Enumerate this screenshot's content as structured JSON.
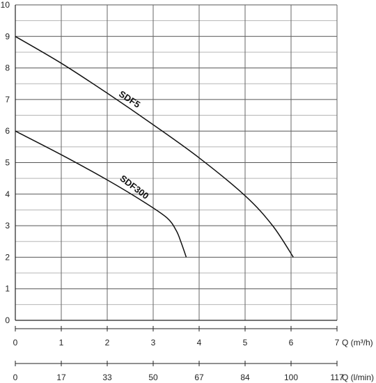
{
  "chart_data": {
    "type": "line",
    "title": "",
    "xlabel": "Q (m³/h)",
    "x2label": "Q (l/min)",
    "ylabel": "",
    "xlim": [
      0,
      7
    ],
    "ylim": [
      0,
      10
    ],
    "x_ticks": [
      "0",
      "1",
      "2",
      "3",
      "4",
      "5",
      "6",
      "7"
    ],
    "x2_ticks": [
      "0",
      "17",
      "33",
      "50",
      "67",
      "84",
      "100",
      "117"
    ],
    "y_ticks": [
      "0",
      "1",
      "2",
      "3",
      "4",
      "5",
      "6",
      "7",
      "8",
      "9",
      "10"
    ],
    "grid": true,
    "series": [
      {
        "name": "SDF5",
        "points": [
          [
            0,
            9.0
          ],
          [
            1,
            8.15
          ],
          [
            2,
            7.2
          ],
          [
            3,
            6.2
          ],
          [
            4,
            5.15
          ],
          [
            5,
            3.95
          ],
          [
            5.6,
            3.0
          ],
          [
            6.05,
            2.0
          ]
        ]
      },
      {
        "name": "SDF300",
        "points": [
          [
            0,
            6.0
          ],
          [
            1,
            5.25
          ],
          [
            2,
            4.45
          ],
          [
            2.8,
            3.75
          ],
          [
            3.3,
            3.25
          ],
          [
            3.5,
            2.85
          ],
          [
            3.6,
            2.5
          ],
          [
            3.72,
            2.0
          ]
        ]
      }
    ]
  }
}
